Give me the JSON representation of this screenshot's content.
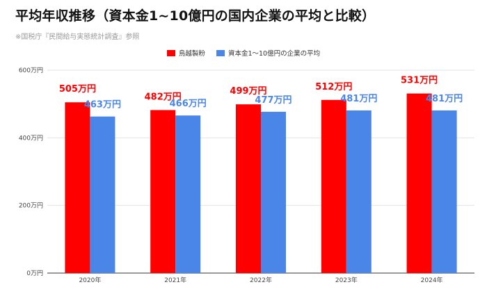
{
  "title": "平均年収推移（資本金1~10億円の国内企業の平均と比較）",
  "source": "※国税庁『民間給与実態統計調査』参照",
  "colors": {
    "series1": "#ff0000",
    "series2": "#4a86e8",
    "grid": "#e3e3e3",
    "axis": "#333333"
  },
  "chart_data": {
    "type": "bar",
    "title": "平均年収推移（資本金1~10億円の国内企業の平均と比較）",
    "categories": [
      "2020年",
      "2021年",
      "2022年",
      "2023年",
      "2024年"
    ],
    "series": [
      {
        "name": "鳥越製粉",
        "values": [
          505,
          482,
          499,
          512,
          531
        ],
        "labels": [
          "505万円",
          "482万円",
          "499万円",
          "512万円",
          "531万円"
        ]
      },
      {
        "name": "資本金1～10億円の企業の平均",
        "values": [
          463,
          466,
          477,
          481,
          481
        ],
        "labels": [
          "463万円",
          "466万円",
          "477万円",
          "481万円",
          "481万円"
        ]
      }
    ],
    "yticks": [
      0,
      200,
      400,
      600
    ],
    "ytick_labels": [
      "0万円",
      "200万円",
      "400万円",
      "600万円"
    ],
    "ylim": [
      0,
      600
    ],
    "grid": true,
    "legend_position": "top-center"
  }
}
